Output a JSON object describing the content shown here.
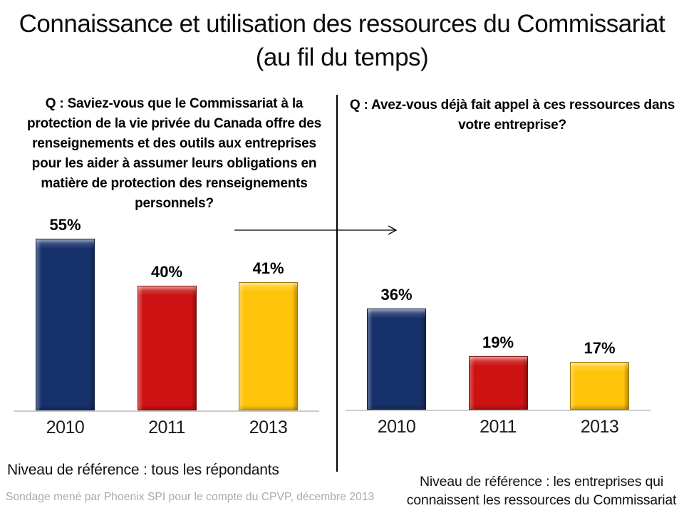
{
  "title": "Connaissance et utilisation des ressources du Commissariat (au fil du temps)",
  "source_note": "Sondage mené par Phoenix SPI pour le compte du CPVP, décembre 2013",
  "chart_data": [
    {
      "type": "bar",
      "title": "Q : Saviez-vous que le Commissariat à la protection de la vie privée du Canada offre des renseignements et des outils aux entreprises pour les aider à assumer leurs obligations en matière de protection des renseignements personnels?",
      "categories": [
        "2010",
        "2011",
        "2013"
      ],
      "values": [
        55,
        40,
        41
      ],
      "data_labels": [
        "55%",
        "40%",
        "41%"
      ],
      "series_colors": [
        "#17316B",
        "#CC1212",
        "#FFC40A"
      ],
      "xlabel": "",
      "ylabel": "",
      "ylim": [
        0,
        60
      ],
      "grid": false,
      "legend": false,
      "note": "Niveau de référence : tous les répondants"
    },
    {
      "type": "bar",
      "title": "Q : Avez-vous déjà fait appel à ces ressources dans votre entreprise?",
      "categories": [
        "2010",
        "2011",
        "2013"
      ],
      "values": [
        36,
        19,
        17
      ],
      "data_labels": [
        "36%",
        "19%",
        "17%"
      ],
      "series_colors": [
        "#17316B",
        "#CC1212",
        "#FFC40A"
      ],
      "xlabel": "",
      "ylabel": "",
      "ylim": [
        0,
        40
      ],
      "grid": false,
      "legend": false,
      "note": "Niveau de référence : les entreprises qui connaissent les ressources du Commissariat"
    }
  ]
}
